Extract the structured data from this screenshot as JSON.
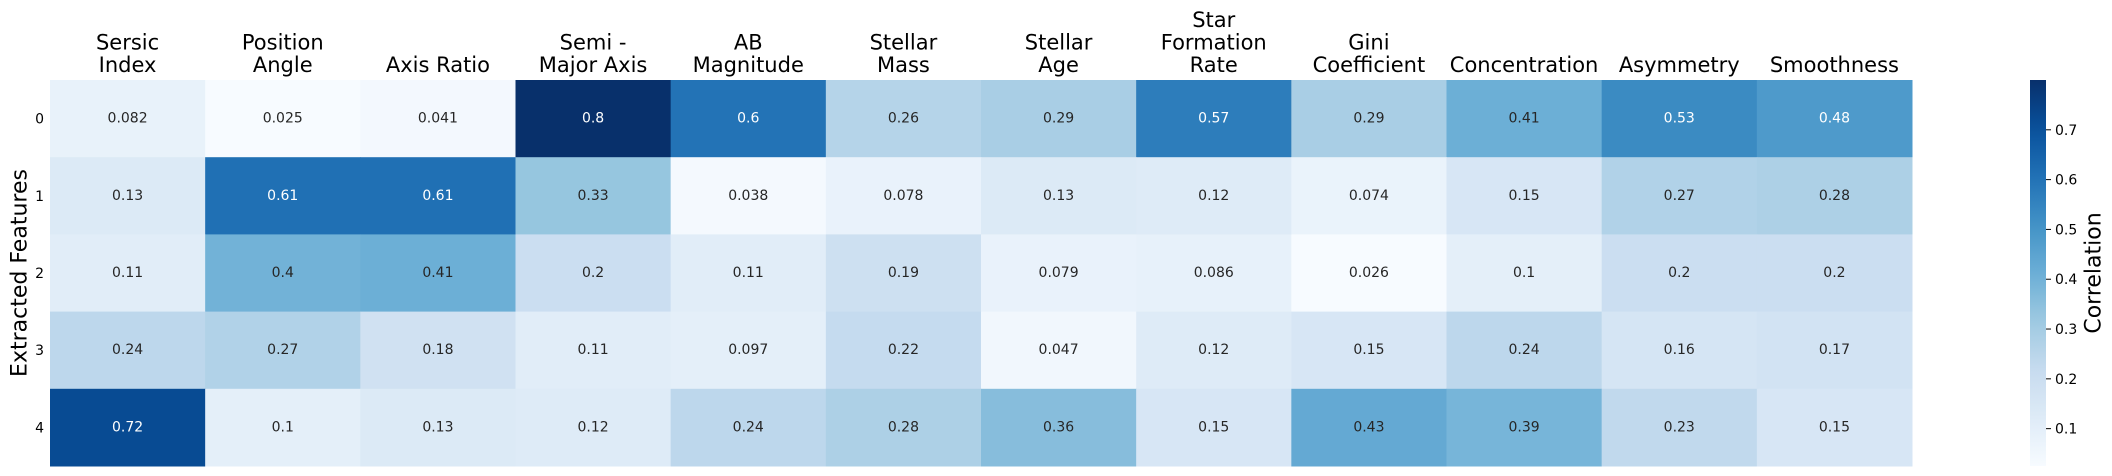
{
  "chart_data": {
    "type": "heatmap",
    "title": "",
    "ylabel": "Extracted Features",
    "colorbar_label": "Correlation",
    "colormap": "Blues",
    "vmin": 0.025,
    "vmax": 0.8,
    "colorbar_ticks": [
      0.1,
      0.2,
      0.3,
      0.4,
      0.5,
      0.6,
      0.7
    ],
    "columns": [
      [
        "Sersic",
        "Index"
      ],
      [
        "Position",
        "Angle"
      ],
      [
        "Axis Ratio"
      ],
      [
        "Semi -",
        "Major Axis"
      ],
      [
        "AB",
        "Magnitude"
      ],
      [
        "Stellar",
        "Mass"
      ],
      [
        "Stellar",
        "Age"
      ],
      [
        "Star",
        "Formation",
        "Rate"
      ],
      [
        "Gini",
        "Coefficient"
      ],
      [
        "Concentration"
      ],
      [
        "Asymmetry"
      ],
      [
        "Smoothness"
      ]
    ],
    "rows": [
      "0",
      "1",
      "2",
      "3",
      "4"
    ],
    "values": [
      [
        0.082,
        0.025,
        0.041,
        0.8,
        0.6,
        0.26,
        0.29,
        0.57,
        0.29,
        0.41,
        0.53,
        0.48
      ],
      [
        0.13,
        0.61,
        0.61,
        0.33,
        0.038,
        0.078,
        0.13,
        0.12,
        0.074,
        0.15,
        0.27,
        0.28
      ],
      [
        0.11,
        0.4,
        0.41,
        0.2,
        0.11,
        0.19,
        0.079,
        0.086,
        0.026,
        0.1,
        0.2,
        0.2
      ],
      [
        0.24,
        0.27,
        0.18,
        0.11,
        0.097,
        0.22,
        0.047,
        0.12,
        0.15,
        0.24,
        0.16,
        0.17
      ],
      [
        0.72,
        0.1,
        0.13,
        0.12,
        0.24,
        0.28,
        0.36,
        0.15,
        0.43,
        0.39,
        0.23,
        0.15
      ]
    ],
    "value_labels": [
      [
        "0.082",
        "0.025",
        "0.041",
        "0.8",
        "0.6",
        "0.26",
        "0.29",
        "0.57",
        "0.29",
        "0.41",
        "0.53",
        "0.48"
      ],
      [
        "0.13",
        "0.61",
        "0.61",
        "0.33",
        "0.038",
        "0.078",
        "0.13",
        "0.12",
        "0.074",
        "0.15",
        "0.27",
        "0.28"
      ],
      [
        "0.11",
        "0.4",
        "0.41",
        "0.2",
        "0.11",
        "0.19",
        "0.079",
        "0.086",
        "0.026",
        "0.1",
        "0.2",
        "0.2"
      ],
      [
        "0.24",
        "0.27",
        "0.18",
        "0.11",
        "0.097",
        "0.22",
        "0.047",
        "0.12",
        "0.15",
        "0.24",
        "0.16",
        "0.17"
      ],
      [
        "0.72",
        "0.1",
        "0.13",
        "0.12",
        "0.24",
        "0.28",
        "0.36",
        "0.15",
        "0.43",
        "0.39",
        "0.23",
        "0.15"
      ]
    ]
  }
}
